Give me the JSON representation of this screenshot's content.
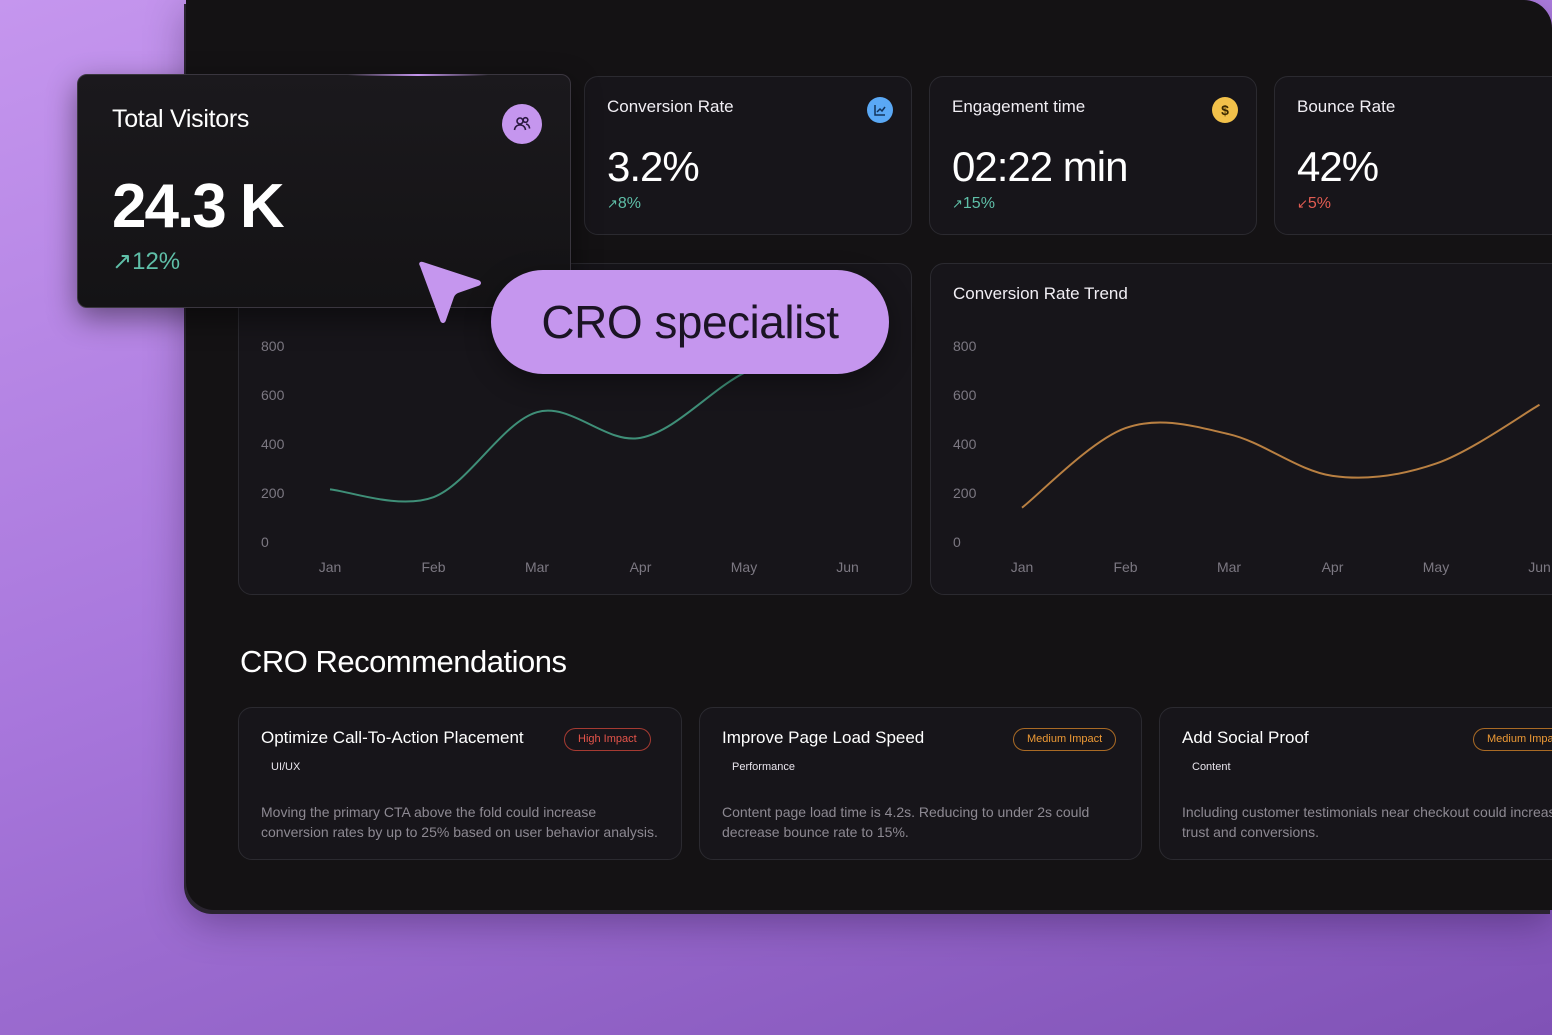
{
  "metrics": {
    "conversion": {
      "title": "Conversion Rate",
      "value": "3.2%",
      "change": "8%",
      "direction": "up",
      "icon": "chart-line-icon",
      "icon_color": "#5aa8f5"
    },
    "engagement": {
      "title": "Engagement time",
      "value": "02:22 min",
      "change": "15%",
      "direction": "up",
      "icon": "dollar-icon",
      "icon_color": "#f2c14a"
    },
    "bounce": {
      "title": "Bounce Rate",
      "value": "42%",
      "change": "5%",
      "direction": "down"
    }
  },
  "visitors": {
    "title": "Total Visitors",
    "value": "24.3 K",
    "change": "12%",
    "direction": "up",
    "icon": "users-icon"
  },
  "pill": {
    "label": "CRO specialist"
  },
  "chart_data": [
    {
      "type": "line",
      "title": "",
      "categories": [
        "Jan",
        "Feb",
        "Mar",
        "Apr",
        "May",
        "Jun"
      ],
      "yticks": [
        0,
        200,
        400,
        600,
        800
      ],
      "ylim": [
        0,
        800
      ],
      "series": [
        {
          "values": [
            215,
            183,
            530,
            425,
            690,
            860
          ],
          "color": "#3f8f78"
        }
      ],
      "grid": false
    },
    {
      "type": "line",
      "title": "Conversion Rate Trend",
      "categories": [
        "Jan",
        "Feb",
        "Mar",
        "Apr",
        "May",
        "Jun"
      ],
      "yticks": [
        0,
        200,
        400,
        600,
        800
      ],
      "ylim": [
        0,
        800
      ],
      "series": [
        {
          "values": [
            140,
            465,
            440,
            270,
            320,
            560
          ],
          "color": "#b98042"
        }
      ],
      "grid": false
    }
  ],
  "section": {
    "title": "CRO Recommendations"
  },
  "recommendations": [
    {
      "title": "Optimize Call-To-Action Placement",
      "impact": "High Impact",
      "impact_level": "high",
      "category": "UI/UX",
      "desc_line1": "Moving the primary CTA above the fold could increase",
      "desc_line2": "conversion rates by up to 25% based on user behavior analysis."
    },
    {
      "title": "Improve Page Load Speed",
      "impact": "Medium Impact",
      "impact_level": "medium",
      "category": "Performance",
      "desc_line1": "Content page load time is 4.2s. Reducing to under 2s could",
      "desc_line2": "decrease bounce rate to 15%."
    },
    {
      "title": "Add Social Proof",
      "impact": "Medium Impact",
      "impact_level": "medium",
      "category": "Content",
      "desc_line1": "Including customer testimonials near checkout could increase",
      "desc_line2": "trust and conversions."
    }
  ],
  "arrows": {
    "up": "↗",
    "down": "↙"
  }
}
